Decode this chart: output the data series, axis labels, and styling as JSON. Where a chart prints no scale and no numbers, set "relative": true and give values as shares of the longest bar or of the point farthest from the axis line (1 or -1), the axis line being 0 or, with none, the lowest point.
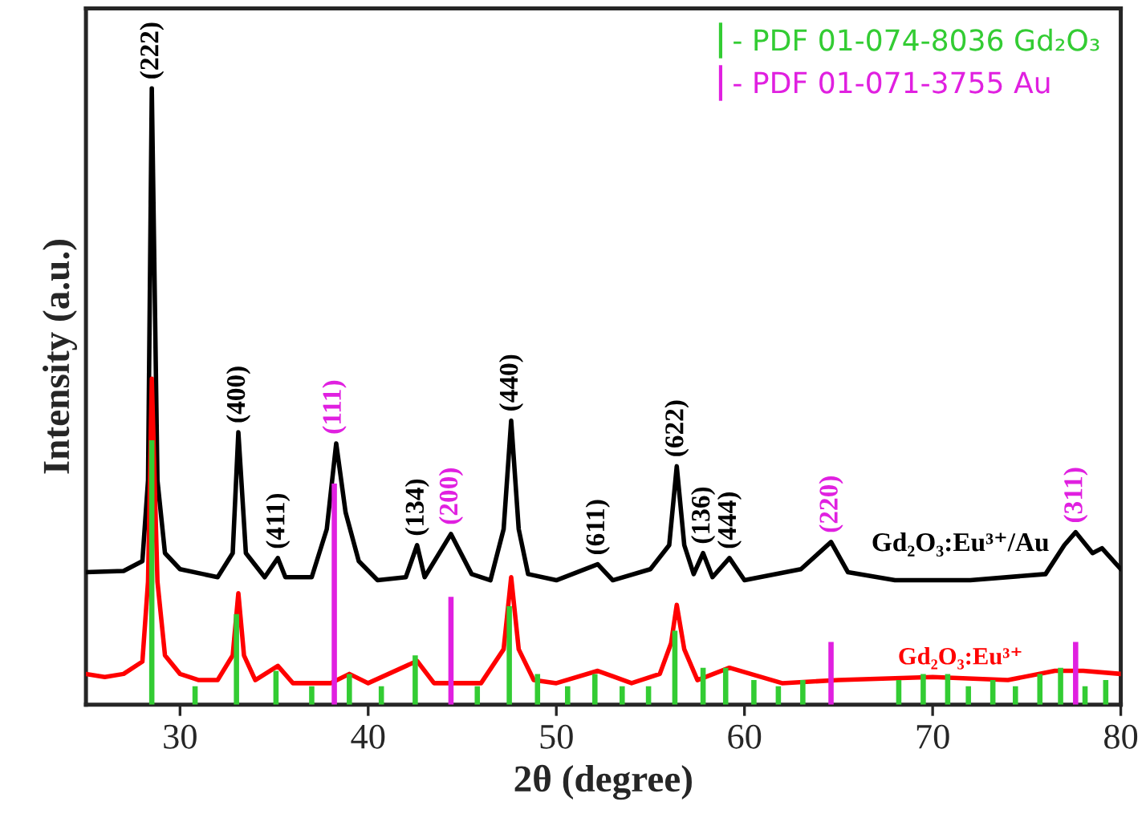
{
  "chart_data": {
    "type": "line",
    "xlabel": "2θ (degree)",
    "ylabel": "Intensity (a.u.)",
    "relative": true,
    "xlim": [
      25,
      80
    ],
    "xticks": [
      30,
      40,
      50,
      60,
      70,
      80
    ],
    "grid": false,
    "legend": "top right",
    "series": [
      {
        "name": "Gd₂O₃:Eu³⁺/Au",
        "color": "#000000",
        "x": [
          25,
          27,
          28,
          28.3,
          28.5,
          28.8,
          29.2,
          30,
          32,
          32.8,
          33.1,
          33.5,
          34.5,
          35.2,
          35.6,
          37,
          37.8,
          38.3,
          38.8,
          39.5,
          40.5,
          42,
          42.6,
          43,
          44.4,
          45.5,
          46.5,
          47.2,
          47.6,
          48,
          48.5,
          50,
          52.2,
          53,
          55,
          56,
          56.4,
          56.8,
          57.3,
          57.8,
          58.3,
          59.2,
          60,
          63,
          64.6,
          65.5,
          68,
          72,
          76,
          77,
          77.6,
          78.5,
          79,
          80
        ],
        "values": [
          0.215,
          0.217,
          0.233,
          0.364,
          1.0,
          0.364,
          0.246,
          0.22,
          0.207,
          0.246,
          0.442,
          0.246,
          0.207,
          0.238,
          0.207,
          0.207,
          0.285,
          0.424,
          0.312,
          0.233,
          0.202,
          0.207,
          0.259,
          0.207,
          0.277,
          0.212,
          0.202,
          0.285,
          0.461,
          0.285,
          0.212,
          0.202,
          0.228,
          0.202,
          0.22,
          0.259,
          0.387,
          0.259,
          0.212,
          0.246,
          0.207,
          0.238,
          0.202,
          0.22,
          0.264,
          0.215,
          0.202,
          0.202,
          0.212,
          0.259,
          0.28,
          0.246,
          0.254,
          0.22
        ]
      },
      {
        "name": "Gd₂O₃:Eu³⁺",
        "color": "#ff0000",
        "x": [
          25,
          26,
          27,
          28,
          28.3,
          28.5,
          28.8,
          29.2,
          30,
          31,
          32,
          32.8,
          33.1,
          33.4,
          34,
          35.2,
          36,
          38,
          39,
          40,
          42.6,
          43.5,
          46,
          47.2,
          47.6,
          48,
          48.8,
          50,
          52.2,
          54,
          55.5,
          56.1,
          56.4,
          56.8,
          57.5,
          59.2,
          62,
          65,
          70,
          74,
          76.5,
          78,
          80
        ],
        "values": [
          0.05,
          0.045,
          0.05,
          0.07,
          0.2,
          0.529,
          0.2,
          0.08,
          0.05,
          0.04,
          0.04,
          0.08,
          0.181,
          0.08,
          0.04,
          0.063,
          0.035,
          0.035,
          0.05,
          0.035,
          0.071,
          0.035,
          0.035,
          0.09,
          0.207,
          0.09,
          0.04,
          0.035,
          0.055,
          0.035,
          0.05,
          0.1,
          0.162,
          0.09,
          0.04,
          0.06,
          0.035,
          0.04,
          0.045,
          0.04,
          0.055,
          0.055,
          0.05
        ]
      },
      {
        "name": "- PDF 01-074-8036 Gd₂O₃",
        "type": "bar",
        "color": "#33cc33",
        "x": [
          28.5,
          30.8,
          33.0,
          35.1,
          37.0,
          39.0,
          40.7,
          42.5,
          45.8,
          47.5,
          49.0,
          50.6,
          52.05,
          53.5,
          54.9,
          56.3,
          57.8,
          59.0,
          60.5,
          61.8,
          63.1,
          68.2,
          69.5,
          70.8,
          71.9,
          73.2,
          74.4,
          75.7,
          76.8,
          78.1,
          79.2
        ],
        "values": [
          0.429,
          0.03,
          0.147,
          0.055,
          0.03,
          0.05,
          0.03,
          0.08,
          0.03,
          0.16,
          0.05,
          0.03,
          0.05,
          0.03,
          0.03,
          0.12,
          0.06,
          0.06,
          0.04,
          0.03,
          0.04,
          0.04,
          0.05,
          0.05,
          0.03,
          0.04,
          0.03,
          0.05,
          0.06,
          0.03,
          0.04
        ]
      },
      {
        "name": "- PDF 01-071-3755 Au",
        "type": "bar",
        "color": "#e020e0",
        "x": [
          38.2,
          44.4,
          64.6,
          77.6
        ],
        "values": [
          0.359,
          0.175,
          0.102,
          0.102
        ]
      }
    ],
    "annotations": [
      {
        "text": "(222)",
        "x": 28.5,
        "y": 1.0
      },
      {
        "text": "(400)",
        "x": 33.1,
        "y": 0.442
      },
      {
        "text": "(411)",
        "x": 35.2,
        "y": 0.238
      },
      {
        "text": "(111)",
        "x": 38.2,
        "y": 0.424
      },
      {
        "text": "(134)",
        "x": 42.6,
        "y": 0.259
      },
      {
        "text": "(200)",
        "x": 44.4,
        "y": 0.277
      },
      {
        "text": "(440)",
        "x": 47.6,
        "y": 0.461
      },
      {
        "text": "(611)",
        "x": 52.2,
        "y": 0.228
      },
      {
        "text": "(622)",
        "x": 56.4,
        "y": 0.387
      },
      {
        "text": "(136)",
        "x": 57.8,
        "y": 0.246
      },
      {
        "text": "(444)",
        "x": 59.2,
        "y": 0.238
      },
      {
        "text": "(220)",
        "x": 64.6,
        "y": 0.264
      },
      {
        "text": "(311)",
        "x": 77.6,
        "y": 0.28
      }
    ]
  }
}
